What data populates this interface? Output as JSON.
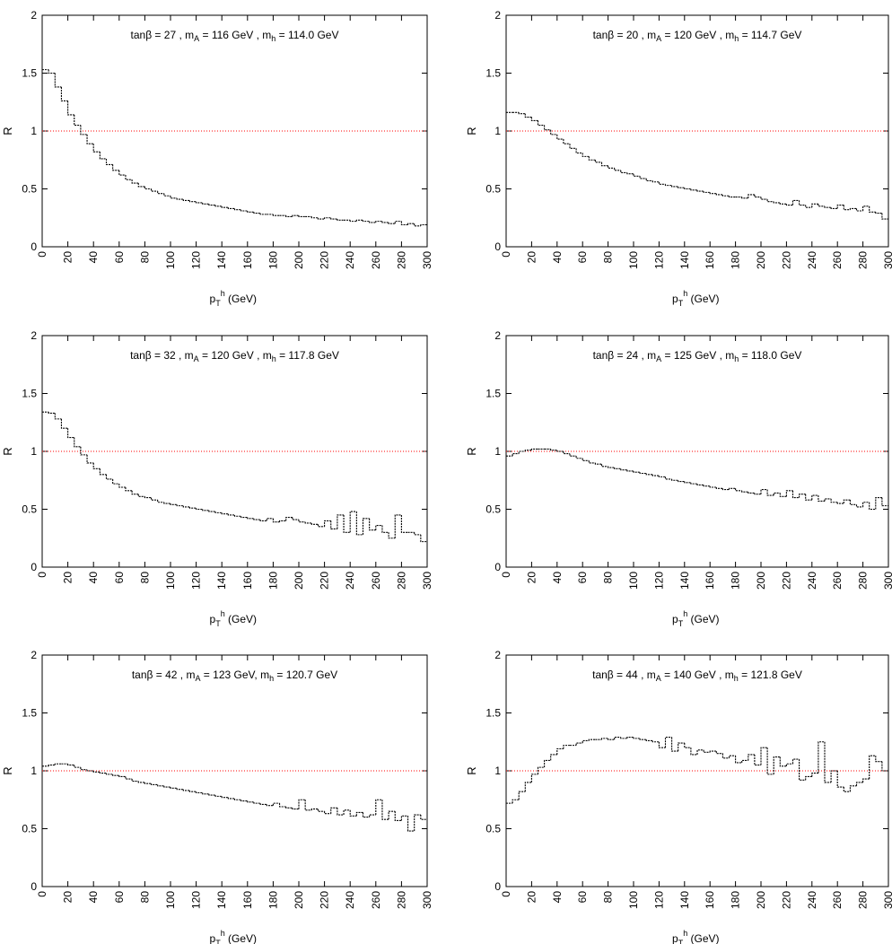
{
  "chart_data": [
    {
      "type": "line",
      "title_parts": {
        "tb": "27",
        "mA": "116",
        "mh": "114.0",
        "sep": " , "
      },
      "xlabel_main": "p",
      "xlabel_sub": "T",
      "xlabel_sup": "h",
      "xlabel_tail": " (GeV)",
      "ylabel": "R",
      "xlim": [
        0,
        300
      ],
      "ylim": [
        0,
        2
      ],
      "xticks": [
        "0",
        "20",
        "40",
        "60",
        "80",
        "100",
        "120",
        "140",
        "160",
        "180",
        "200",
        "220",
        "240",
        "260",
        "280",
        "300"
      ],
      "yticks": [
        "0",
        "0.5",
        "1",
        "1.5",
        "2"
      ],
      "reference_line": {
        "y": 1,
        "color": "#ff0000",
        "style": "dotted"
      },
      "bin_width": 5,
      "values": [
        1.53,
        1.5,
        1.38,
        1.26,
        1.14,
        1.05,
        0.97,
        0.89,
        0.82,
        0.76,
        0.71,
        0.66,
        0.62,
        0.58,
        0.55,
        0.52,
        0.5,
        0.48,
        0.46,
        0.44,
        0.42,
        0.41,
        0.4,
        0.39,
        0.38,
        0.37,
        0.36,
        0.35,
        0.34,
        0.33,
        0.32,
        0.31,
        0.3,
        0.29,
        0.28,
        0.28,
        0.27,
        0.27,
        0.26,
        0.27,
        0.26,
        0.26,
        0.25,
        0.24,
        0.25,
        0.24,
        0.23,
        0.23,
        0.22,
        0.23,
        0.22,
        0.21,
        0.22,
        0.21,
        0.2,
        0.22,
        0.19,
        0.2,
        0.18,
        0.19
      ],
      "series_color": "#000000"
    },
    {
      "type": "line",
      "title_parts": {
        "tb": "20",
        "mA": "120",
        "mh": "114.7",
        "sep": " , "
      },
      "xlabel_main": "p",
      "xlabel_sub": "T",
      "xlabel_sup": "h",
      "xlabel_tail": " (GeV)",
      "ylabel": "R",
      "xlim": [
        0,
        300
      ],
      "ylim": [
        0,
        2
      ],
      "xticks": [
        "0",
        "20",
        "40",
        "60",
        "80",
        "100",
        "120",
        "140",
        "160",
        "180",
        "200",
        "220",
        "240",
        "260",
        "280",
        "300"
      ],
      "yticks": [
        "0",
        "0.5",
        "1",
        "1.5",
        "2"
      ],
      "reference_line": {
        "y": 1,
        "color": "#ff0000",
        "style": "dotted"
      },
      "bin_width": 5,
      "values": [
        1.16,
        1.16,
        1.15,
        1.12,
        1.09,
        1.05,
        1.01,
        0.97,
        0.93,
        0.89,
        0.85,
        0.81,
        0.78,
        0.75,
        0.73,
        0.7,
        0.68,
        0.66,
        0.64,
        0.63,
        0.61,
        0.59,
        0.57,
        0.56,
        0.54,
        0.53,
        0.52,
        0.51,
        0.5,
        0.49,
        0.48,
        0.47,
        0.46,
        0.45,
        0.44,
        0.43,
        0.43,
        0.42,
        0.45,
        0.43,
        0.41,
        0.39,
        0.38,
        0.37,
        0.36,
        0.4,
        0.36,
        0.34,
        0.37,
        0.35,
        0.34,
        0.33,
        0.36,
        0.32,
        0.33,
        0.31,
        0.35,
        0.3,
        0.29,
        0.24
      ],
      "series_color": "#000000"
    },
    {
      "type": "line",
      "title_parts": {
        "tb": "32",
        "mA": "120",
        "mh": "117.8",
        "sep": " , "
      },
      "xlabel_main": "p",
      "xlabel_sub": "T",
      "xlabel_sup": "h",
      "xlabel_tail": " (GeV)",
      "ylabel": "R",
      "xlim": [
        0,
        300
      ],
      "ylim": [
        0,
        2
      ],
      "xticks": [
        "0",
        "20",
        "40",
        "60",
        "80",
        "100",
        "120",
        "140",
        "160",
        "180",
        "200",
        "220",
        "240",
        "260",
        "280",
        "300"
      ],
      "yticks": [
        "0",
        "0.5",
        "1",
        "1.5",
        "2"
      ],
      "reference_line": {
        "y": 1,
        "color": "#ff0000",
        "style": "dotted"
      },
      "bin_width": 5,
      "values": [
        1.34,
        1.33,
        1.28,
        1.2,
        1.12,
        1.04,
        0.97,
        0.9,
        0.85,
        0.8,
        0.76,
        0.72,
        0.69,
        0.66,
        0.63,
        0.61,
        0.6,
        0.58,
        0.56,
        0.55,
        0.54,
        0.53,
        0.52,
        0.51,
        0.5,
        0.49,
        0.48,
        0.47,
        0.46,
        0.45,
        0.44,
        0.43,
        0.42,
        0.41,
        0.4,
        0.42,
        0.39,
        0.4,
        0.43,
        0.41,
        0.39,
        0.38,
        0.37,
        0.35,
        0.4,
        0.33,
        0.45,
        0.3,
        0.48,
        0.28,
        0.42,
        0.32,
        0.36,
        0.3,
        0.25,
        0.45,
        0.3,
        0.3,
        0.28,
        0.22
      ],
      "series_color": "#000000"
    },
    {
      "type": "line",
      "title_parts": {
        "tb": "24",
        "mA": "125",
        "mh": "118.0",
        "sep": " , "
      },
      "xlabel_main": "p",
      "xlabel_sub": "T",
      "xlabel_sup": "h",
      "xlabel_tail": " (GeV)",
      "ylabel": "R",
      "xlim": [
        0,
        300
      ],
      "ylim": [
        0,
        2
      ],
      "xticks": [
        "0",
        "20",
        "40",
        "60",
        "80",
        "100",
        "120",
        "140",
        "160",
        "180",
        "200",
        "220",
        "240",
        "260",
        "280",
        "300"
      ],
      "yticks": [
        "0",
        "0.5",
        "1",
        "1.5",
        "2"
      ],
      "reference_line": {
        "y": 1,
        "color": "#ff0000",
        "style": "dotted"
      },
      "bin_width": 5,
      "values": [
        0.96,
        0.98,
        1.0,
        1.01,
        1.02,
        1.02,
        1.02,
        1.01,
        1.0,
        0.98,
        0.96,
        0.94,
        0.92,
        0.9,
        0.89,
        0.87,
        0.86,
        0.85,
        0.84,
        0.83,
        0.82,
        0.81,
        0.8,
        0.79,
        0.78,
        0.76,
        0.75,
        0.74,
        0.73,
        0.72,
        0.71,
        0.7,
        0.69,
        0.68,
        0.67,
        0.68,
        0.66,
        0.65,
        0.64,
        0.63,
        0.67,
        0.62,
        0.64,
        0.61,
        0.66,
        0.6,
        0.63,
        0.58,
        0.62,
        0.57,
        0.59,
        0.56,
        0.55,
        0.58,
        0.54,
        0.52,
        0.56,
        0.5,
        0.6,
        0.53
      ],
      "series_color": "#000000"
    },
    {
      "type": "line",
      "title_parts": {
        "tb": "42",
        "mA": "123",
        "mh": "120.7",
        "sep": ", "
      },
      "xlabel_main": "p",
      "xlabel_sub": "T",
      "xlabel_sup": "h",
      "xlabel_tail": " (GeV)",
      "ylabel": "R",
      "xlim": [
        0,
        300
      ],
      "ylim": [
        0,
        2
      ],
      "xticks": [
        "0",
        "20",
        "40",
        "60",
        "80",
        "100",
        "120",
        "140",
        "160",
        "180",
        "200",
        "220",
        "240",
        "260",
        "280",
        "300"
      ],
      "yticks": [
        "0",
        "0.5",
        "1",
        "1.5",
        "2"
      ],
      "reference_line": {
        "y": 1,
        "color": "#ff0000",
        "style": "dotted"
      },
      "bin_width": 5,
      "values": [
        1.04,
        1.05,
        1.06,
        1.06,
        1.05,
        1.03,
        1.01,
        1.0,
        0.99,
        0.98,
        0.97,
        0.96,
        0.95,
        0.93,
        0.91,
        0.9,
        0.89,
        0.88,
        0.87,
        0.86,
        0.85,
        0.84,
        0.83,
        0.82,
        0.81,
        0.8,
        0.79,
        0.78,
        0.77,
        0.76,
        0.75,
        0.74,
        0.73,
        0.72,
        0.71,
        0.7,
        0.72,
        0.69,
        0.68,
        0.67,
        0.75,
        0.66,
        0.67,
        0.65,
        0.63,
        0.68,
        0.62,
        0.66,
        0.61,
        0.64,
        0.6,
        0.62,
        0.75,
        0.58,
        0.65,
        0.57,
        0.61,
        0.48,
        0.62,
        0.58
      ],
      "series_color": "#000000"
    },
    {
      "type": "line",
      "title_parts": {
        "tb": "44",
        "mA": "140",
        "mh": "121.8",
        "sep": " , "
      },
      "xlabel_main": "p",
      "xlabel_sub": "T",
      "xlabel_sup": "h",
      "xlabel_tail": " (GeV)",
      "ylabel": "R",
      "xlim": [
        0,
        300
      ],
      "ylim": [
        0,
        2
      ],
      "xticks": [
        "0",
        "20",
        "40",
        "60",
        "80",
        "100",
        "120",
        "140",
        "160",
        "180",
        "200",
        "220",
        "240",
        "260",
        "280",
        "300"
      ],
      "yticks": [
        "0",
        "0.5",
        "1",
        "1.5",
        "2"
      ],
      "reference_line": {
        "y": 1,
        "color": "#ff0000",
        "style": "dotted"
      },
      "bin_width": 5,
      "values": [
        0.72,
        0.75,
        0.82,
        0.9,
        0.97,
        1.03,
        1.09,
        1.14,
        1.19,
        1.22,
        1.22,
        1.24,
        1.26,
        1.27,
        1.27,
        1.28,
        1.27,
        1.29,
        1.28,
        1.29,
        1.28,
        1.27,
        1.26,
        1.25,
        1.2,
        1.29,
        1.17,
        1.24,
        1.2,
        1.14,
        1.18,
        1.16,
        1.17,
        1.15,
        1.11,
        1.13,
        1.07,
        1.09,
        1.14,
        1.05,
        1.2,
        0.97,
        1.12,
        1.04,
        1.06,
        1.1,
        0.92,
        0.95,
        0.98,
        1.25,
        0.9,
        1.0,
        0.86,
        0.82,
        0.87,
        0.9,
        0.93,
        1.13,
        1.08,
        1.0
      ],
      "series_color": "#000000"
    }
  ]
}
